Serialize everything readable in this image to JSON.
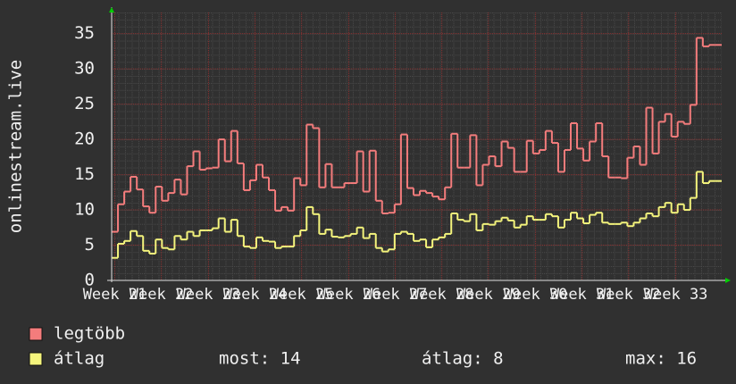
{
  "chart_data": {
    "type": "line",
    "step": true,
    "y_label": "onlinestream.live",
    "x": [
      0,
      1,
      2,
      3,
      4,
      5,
      6,
      7,
      8,
      9,
      10,
      11,
      12,
      13,
      14,
      15,
      16,
      17,
      18,
      19,
      20,
      21,
      22,
      23,
      24,
      25,
      26,
      27,
      28,
      29,
      30,
      31,
      32,
      33,
      34,
      35,
      36,
      37,
      38,
      39,
      40,
      41,
      42,
      43,
      44,
      45,
      46,
      47,
      48,
      49,
      50,
      51,
      52,
      53,
      54,
      55,
      56,
      57,
      58,
      59,
      60,
      61,
      62,
      63,
      64,
      65,
      66,
      67,
      68,
      69,
      70,
      71,
      72,
      73,
      74,
      75,
      76,
      77,
      78,
      79,
      80,
      81,
      82,
      83,
      84,
      85,
      86,
      87,
      88,
      89,
      90,
      91,
      92,
      93,
      94,
      95,
      96
    ],
    "xlim": [
      0,
      97
    ],
    "xticks": [
      {
        "value": 0.5,
        "label": "Week 21"
      },
      {
        "value": 7.9,
        "label": "Week 22"
      },
      {
        "value": 15.4,
        "label": "Week 23"
      },
      {
        "value": 22.8,
        "label": "Week 24"
      },
      {
        "value": 30.2,
        "label": "Week 25"
      },
      {
        "value": 37.7,
        "label": "Week 26"
      },
      {
        "value": 45.1,
        "label": "Week 27"
      },
      {
        "value": 52.5,
        "label": "Week 28"
      },
      {
        "value": 59.9,
        "label": "Week 29"
      },
      {
        "value": 67.4,
        "label": "Week 30"
      },
      {
        "value": 74.8,
        "label": "Week 31"
      },
      {
        "value": 82.2,
        "label": "Week 32"
      },
      {
        "value": 89.7,
        "label": "Week 33"
      }
    ],
    "ylim": [
      0,
      38
    ],
    "yticks": [
      0,
      5,
      10,
      15,
      20,
      25,
      30,
      35
    ],
    "grid": true,
    "series": [
      {
        "name": "legtöbb",
        "color": "#f47c7c",
        "values": [
          6.9,
          10.8,
          12.6,
          14.7,
          12.9,
          10.5,
          9.6,
          13.3,
          11.3,
          12.4,
          14.3,
          12.2,
          16.2,
          18.3,
          15.7,
          15.9,
          16.0,
          20.0,
          16.9,
          21.2,
          16.6,
          12.8,
          14.2,
          16.4,
          14.6,
          12.8,
          9.9,
          10.4,
          9.9,
          14.5,
          13.5,
          22.1,
          21.6,
          13.2,
          16.5,
          13.2,
          13.2,
          13.8,
          13.8,
          18.3,
          12.6,
          18.4,
          11.3,
          9.5,
          9.6,
          10.8,
          20.7,
          13.1,
          12.1,
          12.7,
          12.4,
          11.9,
          11.5,
          13.2,
          20.8,
          16.0,
          16.0,
          20.6,
          13.5,
          16.4,
          17.6,
          16.2,
          19.7,
          18.8,
          15.4,
          15.4,
          19.8,
          18.0,
          18.5,
          21.2,
          19.5,
          15.4,
          18.5,
          22.3,
          18.7,
          17.0,
          19.7,
          22.3,
          17.6,
          14.6,
          14.6,
          14.5,
          17.4,
          19.0,
          16.4,
          24.5,
          18.0,
          22.5,
          23.6,
          20.4,
          22.5,
          22.2,
          24.9,
          34.4,
          33.2,
          33.4,
          33.4
        ]
      },
      {
        "name": "átlag",
        "color": "#f4f47c",
        "values": [
          3.2,
          5.2,
          5.6,
          7.0,
          6.3,
          4.2,
          3.8,
          5.8,
          4.6,
          4.4,
          6.3,
          5.8,
          6.9,
          6.3,
          7.1,
          7.1,
          7.4,
          8.8,
          6.9,
          8.6,
          6.3,
          4.8,
          4.6,
          6.1,
          5.6,
          5.5,
          4.6,
          4.8,
          4.8,
          6.3,
          7.1,
          10.4,
          9.4,
          6.6,
          7.2,
          6.2,
          6.1,
          6.3,
          6.6,
          7.5,
          6.0,
          6.6,
          4.6,
          4.1,
          4.4,
          6.6,
          6.9,
          6.6,
          5.6,
          5.8,
          4.7,
          5.8,
          6.1,
          6.6,
          9.5,
          8.6,
          8.4,
          9.4,
          7.1,
          8.0,
          7.9,
          8.4,
          8.9,
          8.5,
          7.5,
          7.9,
          9.1,
          8.6,
          8.6,
          9.4,
          9.1,
          7.5,
          8.6,
          9.6,
          8.8,
          8.1,
          9.3,
          9.6,
          8.2,
          8.0,
          8.0,
          8.2,
          7.7,
          8.2,
          8.8,
          9.5,
          9.1,
          10.4,
          11.0,
          9.6,
          10.8,
          10.0,
          11.7,
          15.4,
          13.8,
          14.1,
          14.1
        ]
      }
    ],
    "legend_stats": [
      "most: 14",
      "átlag: 8",
      "max: 16"
    ]
  }
}
